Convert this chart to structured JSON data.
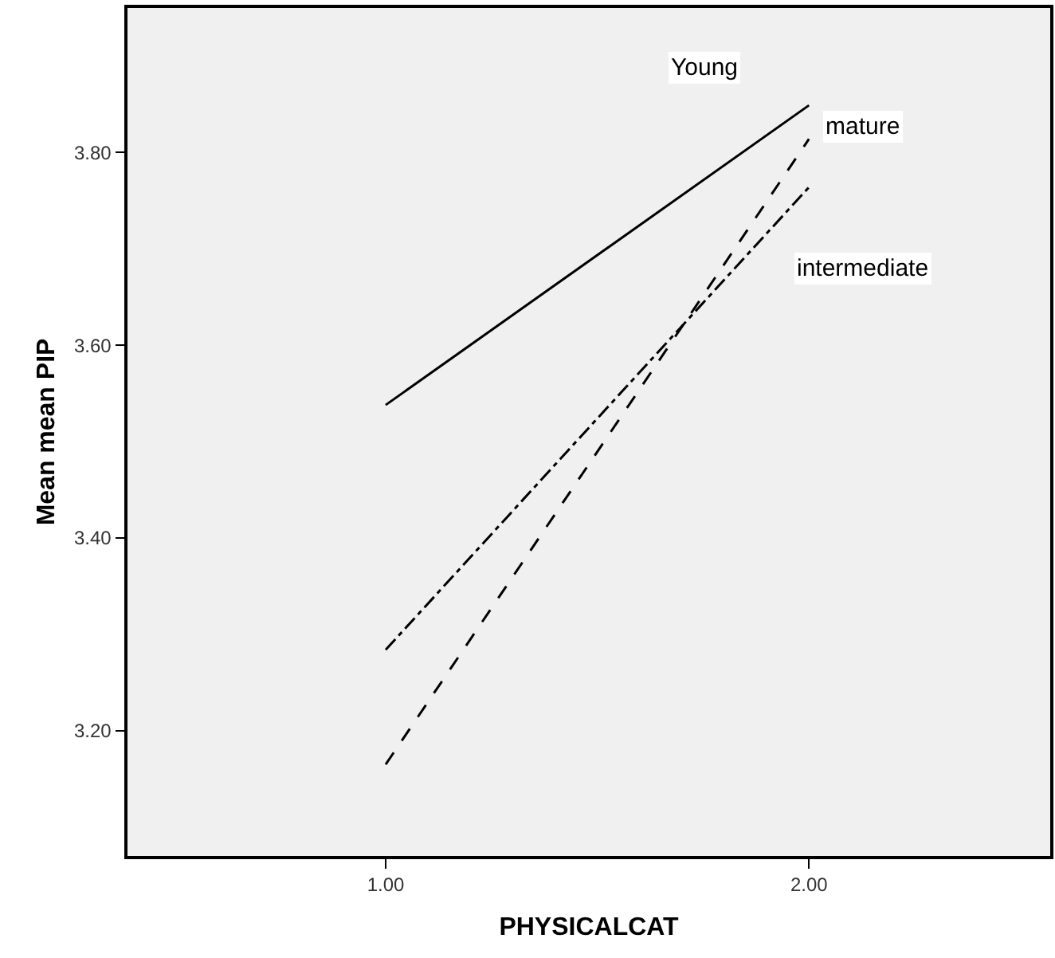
{
  "chart_data": {
    "type": "line",
    "xlabel": "PHYSICALCAT",
    "ylabel": "Mean mean PIP",
    "x": [
      1,
      2
    ],
    "series": [
      {
        "name": "Young",
        "color": "#000000",
        "line_style": "solid",
        "values": [
          3.538,
          3.849
        ]
      },
      {
        "name": "mature",
        "color": "#000000",
        "line_style": "dashed",
        "values": [
          3.165,
          3.814
        ]
      },
      {
        "name": "intermediate",
        "color": "#000000",
        "line_style": "dashdot",
        "values": [
          3.284,
          3.764
        ]
      }
    ],
    "xlim": [
      0.39,
      2.57
    ],
    "xticks": [
      {
        "value": 1,
        "label": "1.00"
      },
      {
        "value": 2,
        "label": "2.00"
      }
    ],
    "ylim": [
      3.07,
      3.95
    ],
    "yticks": [
      {
        "value": 3.2,
        "label": "3.20"
      },
      {
        "value": 3.4,
        "label": "3.40"
      },
      {
        "value": 3.6,
        "label": "3.60"
      },
      {
        "value": 3.8,
        "label": "3.80"
      }
    ],
    "grid": false,
    "legend": false,
    "marker": "none"
  }
}
